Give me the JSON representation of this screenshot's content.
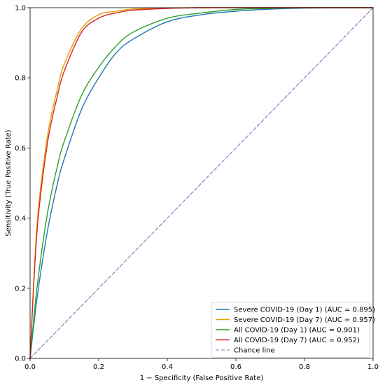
{
  "chart_data": {
    "type": "line",
    "title": "",
    "xlabel": "1 − Specificity (False Positive Rate)",
    "ylabel": "Sensitivity (True Positive Rate)",
    "xlim": [
      0.0,
      1.0
    ],
    "ylim": [
      0.0,
      1.0
    ],
    "xticks": [
      "0.0",
      "0.2",
      "0.4",
      "0.6",
      "0.8",
      "1.0"
    ],
    "yticks": [
      "0.0",
      "0.2",
      "0.4",
      "0.6",
      "0.8",
      "1.0"
    ],
    "grid": false,
    "legend_position": "bottom-right",
    "series": [
      {
        "name": "Severe COVID-19 (Day 1) (AUC = 0.895)",
        "color": "#1f77b4",
        "style": "solid",
        "x": [
          0,
          0.02,
          0.05,
          0.08,
          0.1,
          0.15,
          0.2,
          0.25,
          0.3,
          0.4,
          0.5,
          0.6,
          0.7,
          0.8,
          1.0
        ],
        "y": [
          0,
          0.17,
          0.36,
          0.5,
          0.57,
          0.71,
          0.8,
          0.87,
          0.91,
          0.96,
          0.98,
          0.99,
          0.996,
          0.999,
          1.0
        ]
      },
      {
        "name": "Severe COVID-19 (Day 7) (AUC = 0.957)",
        "color": "#e6a100",
        "style": "solid",
        "x": [
          0,
          0.02,
          0.05,
          0.08,
          0.1,
          0.15,
          0.2,
          0.25,
          0.3,
          0.4,
          0.5,
          0.6,
          0.8,
          1.0
        ],
        "y": [
          0,
          0.38,
          0.63,
          0.77,
          0.84,
          0.94,
          0.98,
          0.99,
          0.996,
          0.999,
          1.0,
          1.0,
          1.0,
          1.0
        ]
      },
      {
        "name": "All COVID-19 (Day 1) (AUC = 0.901)",
        "color": "#2ca02c",
        "style": "solid",
        "x": [
          0,
          0.02,
          0.05,
          0.08,
          0.1,
          0.15,
          0.2,
          0.25,
          0.3,
          0.4,
          0.5,
          0.6,
          0.7,
          0.8,
          1.0
        ],
        "y": [
          0,
          0.2,
          0.41,
          0.55,
          0.62,
          0.75,
          0.83,
          0.89,
          0.93,
          0.97,
          0.985,
          0.995,
          0.998,
          1.0,
          1.0
        ]
      },
      {
        "name": "All COVID-19 (Day 7) (AUC = 0.952)",
        "color": "#d62728",
        "style": "solid",
        "x": [
          0,
          0.02,
          0.05,
          0.08,
          0.1,
          0.15,
          0.2,
          0.25,
          0.3,
          0.4,
          0.5,
          0.6,
          0.8,
          1.0
        ],
        "y": [
          0,
          0.36,
          0.61,
          0.75,
          0.82,
          0.93,
          0.97,
          0.985,
          0.993,
          0.998,
          1.0,
          1.0,
          1.0,
          1.0
        ]
      },
      {
        "name": "Chance line",
        "color": "#9467bd",
        "style": "dashed",
        "x": [
          0,
          1
        ],
        "y": [
          0,
          1
        ]
      }
    ]
  }
}
